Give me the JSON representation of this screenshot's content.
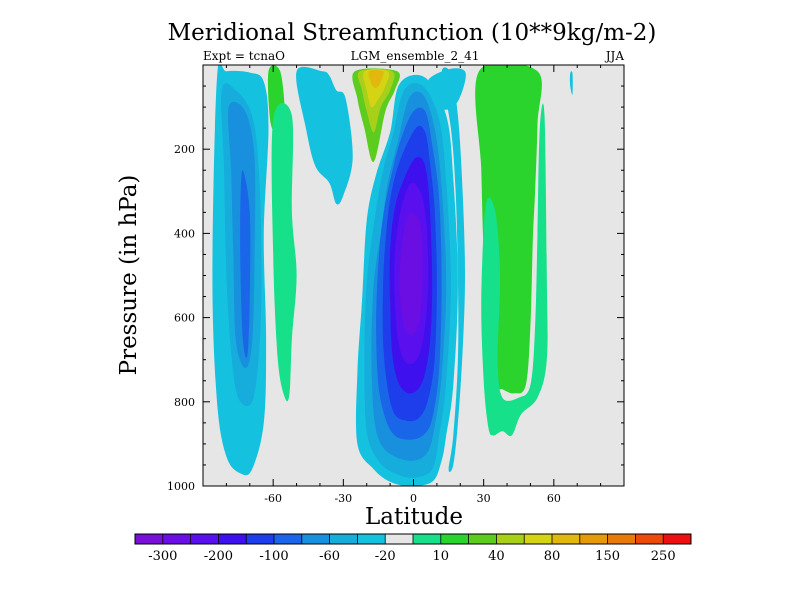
{
  "chart_data": {
    "type": "heatmap",
    "title": "Meridional Streamfunction (10**9kg/m-2)",
    "left_label": "Expt = tcnaO",
    "center_label": "LGM_ensemble_2_41",
    "right_label": "JJA",
    "xlabel": "Latitude",
    "ylabel": "Pressure (in hPa)",
    "xlim": [
      -90,
      90
    ],
    "ylim": [
      0,
      1000
    ],
    "y_inverted": true,
    "x_ticks": [
      {
        "value": -60,
        "label": "-60"
      },
      {
        "value": -30,
        "label": "-30"
      },
      {
        "value": 0,
        "label": "0"
      },
      {
        "value": 30,
        "label": "30"
      },
      {
        "value": 60,
        "label": "60"
      }
    ],
    "y_ticks": [
      {
        "value": 200,
        "label": "200"
      },
      {
        "value": 400,
        "label": "400"
      },
      {
        "value": 600,
        "label": "600"
      },
      {
        "value": 800,
        "label": "800"
      },
      {
        "value": 1000,
        "label": "1000"
      }
    ],
    "background_color": "#e6e6e6",
    "colorbar": {
      "colors": [
        "#7a0fd6",
        "#6a0ee4",
        "#5a0fee",
        "#3f10ee",
        "#1e3eec",
        "#1a66e8",
        "#1890de",
        "#16acdc",
        "#14c2e0",
        "#e6e6e6",
        "#16e08a",
        "#2ad42c",
        "#5ccc1e",
        "#a8d01a",
        "#d4d414",
        "#e2b80e",
        "#e69a0a",
        "#e67a0a",
        "#ea4a0a",
        "#ee1010"
      ],
      "labels": [
        "-300",
        "-200",
        "-100",
        "-60",
        "-20",
        "10",
        "40",
        "80",
        "150",
        "250"
      ]
    },
    "contours": [
      {
        "name": "south-cell-outer",
        "color": "#14c2e0",
        "points": [
          [
            -84,
            30
          ],
          [
            -80,
            15
          ],
          [
            -70,
            18
          ],
          [
            -64,
            40
          ],
          [
            -62,
            150
          ],
          [
            -64,
            400
          ],
          [
            -63,
            650
          ],
          [
            -64,
            850
          ],
          [
            -69,
            960
          ],
          [
            -74,
            970
          ],
          [
            -80,
            930
          ],
          [
            -84,
            800
          ],
          [
            -86,
            500
          ]
        ]
      },
      {
        "name": "south-cell-mid",
        "color": "#16acdc",
        "points": [
          [
            -82,
            60
          ],
          [
            -76,
            60
          ],
          [
            -69,
            120
          ],
          [
            -66,
            260
          ],
          [
            -65,
            500
          ],
          [
            -66,
            680
          ],
          [
            -69,
            800
          ],
          [
            -75,
            790
          ],
          [
            -78,
            680
          ],
          [
            -80,
            500
          ],
          [
            -81,
            250
          ]
        ]
      },
      {
        "name": "south-cell-inner",
        "color": "#1890de",
        "points": [
          [
            -79,
            100
          ],
          [
            -72,
            110
          ],
          [
            -68,
            220
          ],
          [
            -68,
            460
          ],
          [
            -69,
            660
          ],
          [
            -72,
            720
          ],
          [
            -76,
            650
          ],
          [
            -77,
            450
          ],
          [
            -78,
            250
          ]
        ]
      },
      {
        "name": "south-cell-core",
        "color": "#1a66e8",
        "points": [
          [
            -73,
            250
          ],
          [
            -70,
            350
          ],
          [
            -70,
            550
          ],
          [
            -71,
            690
          ],
          [
            -73,
            650
          ],
          [
            -74,
            480
          ],
          [
            -74,
            330
          ]
        ]
      },
      {
        "name": "south-green-band",
        "color": "#2ad42c",
        "points": [
          [
            -62,
            15
          ],
          [
            -57,
            15
          ],
          [
            -55,
            120
          ],
          [
            -57,
            160
          ],
          [
            -61,
            140
          ]
        ]
      },
      {
        "name": "south-teal-band",
        "color": "#16e08a",
        "points": [
          [
            -60,
            130
          ],
          [
            -52,
            120
          ],
          [
            -52,
            350
          ],
          [
            -50,
            500
          ],
          [
            -52,
            650
          ],
          [
            -53,
            780
          ],
          [
            -55,
            790
          ],
          [
            -58,
            700
          ],
          [
            -60,
            450
          ]
        ]
      },
      {
        "name": "upper-left-blue",
        "color": "#14c2e0",
        "points": [
          [
            -50,
            15
          ],
          [
            -39,
            15
          ],
          [
            -36,
            25
          ],
          [
            -33,
            60
          ],
          [
            -29,
            80
          ],
          [
            -26,
            220
          ],
          [
            -30,
            310
          ],
          [
            -33,
            330
          ],
          [
            -36,
            280
          ],
          [
            -42,
            240
          ],
          [
            -46,
            150
          ]
        ]
      },
      {
        "name": "tropical-yellow-outer",
        "color": "#5ccc1e",
        "points": [
          [
            -25,
            15
          ],
          [
            -7,
            15
          ],
          [
            -8,
            60
          ],
          [
            -12,
            110
          ],
          [
            -17,
            230
          ],
          [
            -21,
            150
          ],
          [
            -24,
            80
          ]
        ]
      },
      {
        "name": "tropical-yellow-mid",
        "color": "#a8d01a",
        "points": [
          [
            -23,
            15
          ],
          [
            -9,
            15
          ],
          [
            -10,
            60
          ],
          [
            -14,
            100
          ],
          [
            -17,
            160
          ],
          [
            -20,
            110
          ],
          [
            -22,
            60
          ]
        ]
      },
      {
        "name": "tropical-yellow-inner",
        "color": "#d4d414",
        "points": [
          [
            -21,
            15
          ],
          [
            -11,
            15
          ],
          [
            -12,
            50
          ],
          [
            -15,
            80
          ],
          [
            -18,
            100
          ],
          [
            -20,
            60
          ]
        ]
      },
      {
        "name": "tropical-orange",
        "color": "#e2b80e",
        "points": [
          [
            -19,
            15
          ],
          [
            -13,
            15
          ],
          [
            -14,
            40
          ],
          [
            -16,
            55
          ],
          [
            -18,
            45
          ]
        ]
      },
      {
        "name": "upper-right-blue-wedge",
        "color": "#14c2e0",
        "points": [
          [
            6,
            40
          ],
          [
            15,
            10
          ],
          [
            22,
            15
          ],
          [
            21,
            60
          ],
          [
            17,
            100
          ],
          [
            11,
            100
          ]
        ]
      },
      {
        "name": "main-cell-1",
        "color": "#14c2e0",
        "points": [
          [
            -6,
            45
          ],
          [
            5,
            30
          ],
          [
            14,
            120
          ],
          [
            17,
            270
          ],
          [
            19,
            520
          ],
          [
            17,
            760
          ],
          [
            14,
            880
          ],
          [
            12,
            940
          ],
          [
            8,
            990
          ],
          [
            -2,
            1000
          ],
          [
            -10,
            990
          ],
          [
            -17,
            960
          ],
          [
            -24,
            900
          ],
          [
            -24,
            730
          ],
          [
            -22,
            560
          ],
          [
            -20,
            370
          ],
          [
            -16,
            260
          ],
          [
            -10,
            160
          ]
        ]
      },
      {
        "name": "main-cell-2",
        "color": "#16acdc",
        "points": [
          [
            -4,
            60
          ],
          [
            4,
            50
          ],
          [
            11,
            130
          ],
          [
            14,
            280
          ],
          [
            16,
            520
          ],
          [
            14,
            750
          ],
          [
            11,
            880
          ],
          [
            8,
            960
          ],
          [
            0,
            980
          ],
          [
            -8,
            970
          ],
          [
            -15,
            940
          ],
          [
            -20,
            870
          ],
          [
            -21,
            700
          ],
          [
            -20,
            520
          ],
          [
            -17,
            380
          ],
          [
            -13,
            250
          ],
          [
            -9,
            170
          ]
        ]
      },
      {
        "name": "main-cell-3",
        "color": "#1890de",
        "points": [
          [
            -2,
            80
          ],
          [
            4,
            70
          ],
          [
            9,
            150
          ],
          [
            12,
            290
          ],
          [
            14,
            520
          ],
          [
            12,
            740
          ],
          [
            9,
            860
          ],
          [
            6,
            920
          ],
          [
            0,
            940
          ],
          [
            -8,
            930
          ],
          [
            -14,
            900
          ],
          [
            -17,
            830
          ],
          [
            -18,
            680
          ],
          [
            -17,
            520
          ],
          [
            -14,
            400
          ],
          [
            -11,
            280
          ],
          [
            -7,
            190
          ]
        ]
      },
      {
        "name": "main-cell-4",
        "color": "#1a66e8",
        "points": [
          [
            0,
            110
          ],
          [
            5,
            110
          ],
          [
            8,
            190
          ],
          [
            11,
            320
          ],
          [
            12,
            520
          ],
          [
            11,
            720
          ],
          [
            8,
            840
          ],
          [
            4,
            880
          ],
          [
            -2,
            890
          ],
          [
            -8,
            880
          ],
          [
            -12,
            840
          ],
          [
            -15,
            760
          ],
          [
            -16,
            620
          ],
          [
            -15,
            470
          ],
          [
            -13,
            360
          ],
          [
            -9,
            250
          ],
          [
            -5,
            170
          ]
        ]
      },
      {
        "name": "main-cell-5",
        "color": "#1e3eec",
        "points": [
          [
            1,
            150
          ],
          [
            5,
            160
          ],
          [
            7,
            230
          ],
          [
            9,
            340
          ],
          [
            10,
            520
          ],
          [
            9,
            700
          ],
          [
            6,
            800
          ],
          [
            2,
            840
          ],
          [
            -3,
            845
          ],
          [
            -8,
            830
          ],
          [
            -11,
            770
          ],
          [
            -13,
            660
          ],
          [
            -13,
            520
          ],
          [
            -12,
            420
          ],
          [
            -10,
            320
          ],
          [
            -6,
            230
          ]
        ]
      },
      {
        "name": "main-cell-6",
        "color": "#3f10ee",
        "points": [
          [
            1,
            220
          ],
          [
            5,
            240
          ],
          [
            7,
            340
          ],
          [
            8,
            520
          ],
          [
            7,
            660
          ],
          [
            4,
            750
          ],
          [
            -1,
            780
          ],
          [
            -6,
            760
          ],
          [
            -9,
            690
          ],
          [
            -10,
            560
          ],
          [
            -10,
            440
          ],
          [
            -8,
            340
          ],
          [
            -4,
            270
          ]
        ]
      },
      {
        "name": "main-cell-7",
        "color": "#5a0fee",
        "points": [
          [
            0,
            280
          ],
          [
            4,
            320
          ],
          [
            6,
            420
          ],
          [
            6,
            560
          ],
          [
            3,
            680
          ],
          [
            -2,
            710
          ],
          [
            -6,
            670
          ],
          [
            -8,
            560
          ],
          [
            -8,
            450
          ],
          [
            -6,
            360
          ],
          [
            -3,
            300
          ]
        ]
      },
      {
        "name": "main-cell-core",
        "color": "#6a0ee4",
        "points": [
          [
            -1,
            350
          ],
          [
            3,
            380
          ],
          [
            4,
            480
          ],
          [
            3,
            590
          ],
          [
            0,
            640
          ],
          [
            -4,
            620
          ],
          [
            -6,
            530
          ],
          [
            -5,
            430
          ],
          [
            -3,
            370
          ]
        ]
      },
      {
        "name": "north-tropical-blue",
        "color": "#14c2e0",
        "points": [
          [
            12,
            20
          ],
          [
            16,
            20
          ],
          [
            19,
            120
          ],
          [
            21,
            300
          ],
          [
            22,
            500
          ],
          [
            21,
            680
          ],
          [
            19,
            850
          ],
          [
            17,
            950
          ],
          [
            15,
            960
          ],
          [
            17,
            880
          ],
          [
            19,
            700
          ],
          [
            19,
            500
          ],
          [
            18,
            300
          ],
          [
            16,
            150
          ]
        ]
      },
      {
        "name": "north-green-band",
        "color": "#2ad42c",
        "points": [
          [
            28,
            15
          ],
          [
            53,
            15
          ],
          [
            53,
            140
          ],
          [
            52,
            300
          ],
          [
            51,
            420
          ],
          [
            50,
            620
          ],
          [
            48,
            760
          ],
          [
            43,
            780
          ],
          [
            38,
            770
          ],
          [
            35,
            760
          ],
          [
            32,
            650
          ],
          [
            30,
            450
          ],
          [
            29,
            250
          ]
        ]
      },
      {
        "name": "north-teal-band",
        "color": "#16e08a",
        "points": [
          [
            31,
            330
          ],
          [
            35,
            350
          ],
          [
            37,
            500
          ],
          [
            36,
            700
          ],
          [
            38,
            790
          ],
          [
            45,
            790
          ],
          [
            50,
            760
          ],
          [
            52,
            620
          ],
          [
            53,
            400
          ],
          [
            54,
            150
          ],
          [
            56,
            120
          ],
          [
            57,
            500
          ],
          [
            57,
            700
          ],
          [
            53,
            790
          ],
          [
            46,
            830
          ],
          [
            42,
            880
          ],
          [
            38,
            870
          ],
          [
            34,
            880
          ],
          [
            32,
            860
          ],
          [
            30,
            750
          ],
          [
            29,
            550
          ]
        ]
      },
      {
        "name": "far-north-speck",
        "color": "#14c2e0",
        "points": [
          [
            67,
            20
          ],
          [
            68,
            20
          ],
          [
            68,
            70
          ],
          [
            67,
            50
          ]
        ]
      }
    ]
  }
}
